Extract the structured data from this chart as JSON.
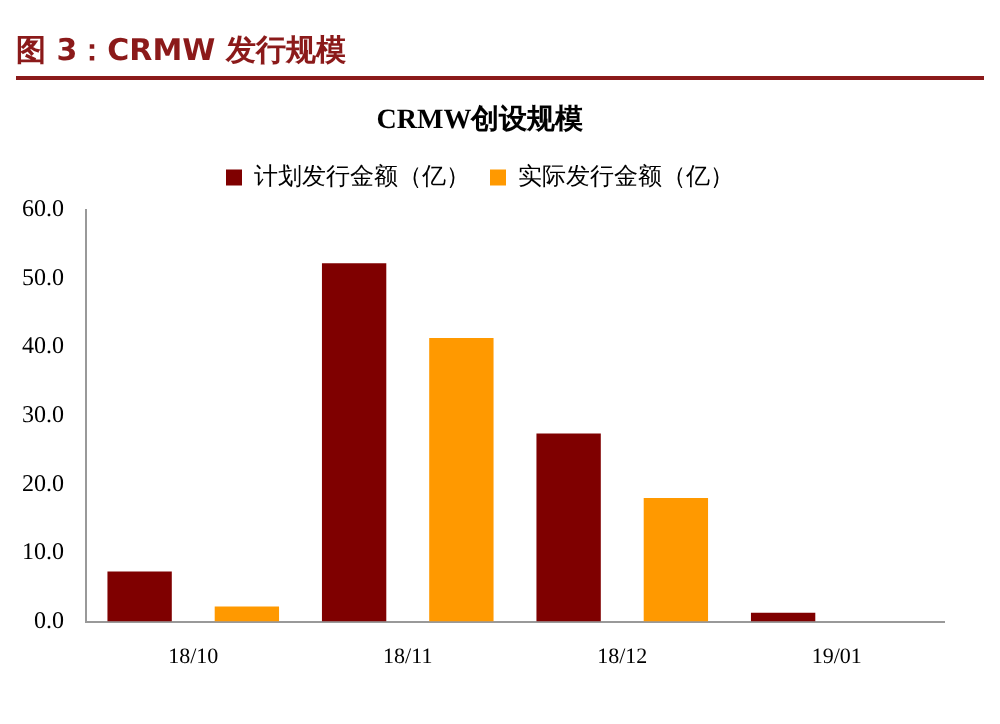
{
  "chart_data": {
    "type": "bar",
    "title": "图 3：CRMW 发行规模",
    "subtitle": "CRMW创设规模",
    "categories": [
      "18/10",
      "18/11",
      "18/12",
      "19/01"
    ],
    "series": [
      {
        "name": "计划发行金额（亿）",
        "color": "#7f0000",
        "values": [
          7.3,
          52.2,
          27.4,
          1.3
        ]
      },
      {
        "name": "实际发行金额（亿）",
        "color": "#ff9900",
        "values": [
          2.2,
          41.3,
          18.0,
          null
        ]
      }
    ],
    "ylim": [
      0,
      60
    ],
    "yticks": [
      {
        "value": 0,
        "label": "0.0"
      },
      {
        "value": 10,
        "label": "10.0"
      },
      {
        "value": 20,
        "label": "20.0"
      },
      {
        "value": 30,
        "label": "30.0"
      },
      {
        "value": 40,
        "label": "40.0"
      },
      {
        "value": 50,
        "label": "50.0"
      },
      {
        "value": 60,
        "label": "60.0"
      }
    ],
    "grid": false,
    "legend": "top"
  }
}
